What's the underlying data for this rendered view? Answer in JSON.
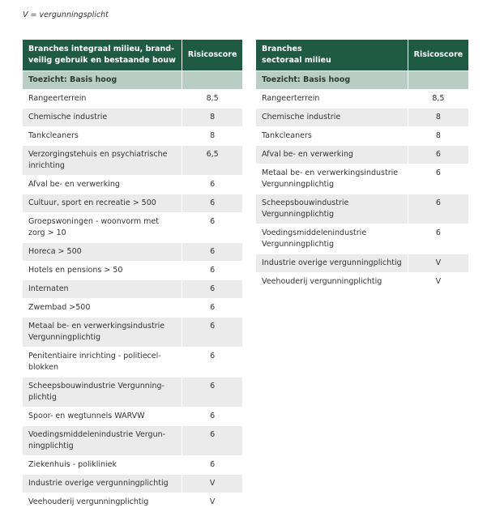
{
  "note": "V = vergunningsplicht",
  "tables": [
    {
      "header": {
        "lines": [
          "Branches integraal milieu, brand-",
          "veilig gebruik en bestaande bouw"
        ],
        "score": "Risicoscore"
      },
      "subheader": "Toezicht: Basis hoog",
      "rows": [
        {
          "lines": [
            "Rangeerterrein"
          ],
          "score": "8,5"
        },
        {
          "lines": [
            "Chemische industrie"
          ],
          "score": "8"
        },
        {
          "lines": [
            "Tankcleaners"
          ],
          "score": "8"
        },
        {
          "lines": [
            "Verzorgingstehuis en psychiatrische",
            "inrichting"
          ],
          "score": "6,5"
        },
        {
          "lines": [
            "Afval be- en verwerking"
          ],
          "score": "6"
        },
        {
          "lines": [
            "Cultuur, sport en recreatie > 500"
          ],
          "score": "6"
        },
        {
          "lines": [
            "Groepswoningen - woonvorm met",
            "zorg > 10"
          ],
          "score": "6"
        },
        {
          "lines": [
            "Horeca > 500"
          ],
          "score": "6"
        },
        {
          "lines": [
            "Hotels en pensions > 50"
          ],
          "score": "6"
        },
        {
          "lines": [
            "Internaten"
          ],
          "score": "6"
        },
        {
          "lines": [
            "Zwembad >500"
          ],
          "score": "6"
        },
        {
          "lines": [
            "Metaal be- en verwerkingsindustrie",
            "Vergunningplichtig"
          ],
          "score": "6"
        },
        {
          "lines": [
            "Penitentiaire inrichting - politiecel-",
            "blokken"
          ],
          "score": "6"
        },
        {
          "lines": [
            "Scheepsbouwindustrie Vergunning-",
            "plichtig"
          ],
          "score": "6"
        },
        {
          "lines": [
            "Spoor- en wegtunnels WARVW"
          ],
          "score": "6"
        },
        {
          "lines": [
            "Voedingsmiddelenindustrie Vergun-",
            "ningplichtig"
          ],
          "score": "6"
        },
        {
          "lines": [
            "Ziekenhuis - polikliniek"
          ],
          "score": "6"
        },
        {
          "lines": [
            "Industrie overige vergunningplichtig"
          ],
          "score": "V"
        },
        {
          "lines": [
            "Veehouderij vergunningplichtig"
          ],
          "score": "V"
        }
      ]
    },
    {
      "header": {
        "lines": [
          "Branches",
          "sectoraal milieu"
        ],
        "score": "Risicoscore"
      },
      "subheader": "Toezicht: Basis hoog",
      "rows": [
        {
          "lines": [
            "Rangeerterrein"
          ],
          "score": "8,5"
        },
        {
          "lines": [
            "Chemische industrie"
          ],
          "score": "8"
        },
        {
          "lines": [
            "Tankcleaners"
          ],
          "score": "8"
        },
        {
          "lines": [
            "Afval be- en verwerking"
          ],
          "score": "6"
        },
        {
          "lines": [
            "Metaal be- en verwerkingsindustrie",
            "Vergunningplichtig"
          ],
          "score": "6"
        },
        {
          "lines": [
            "Scheepsbouwindustrie",
            "Vergunningplichtig"
          ],
          "score": "6"
        },
        {
          "lines": [
            "Voedingsmiddelenindustrie",
            "Vergunningplichtig"
          ],
          "score": "6"
        },
        {
          "lines": [
            "Industrie overige vergunningplichtig"
          ],
          "score": "V"
        },
        {
          "lines": [
            "Veehouderij vergunningplichtig"
          ],
          "score": "V"
        }
      ]
    }
  ]
}
